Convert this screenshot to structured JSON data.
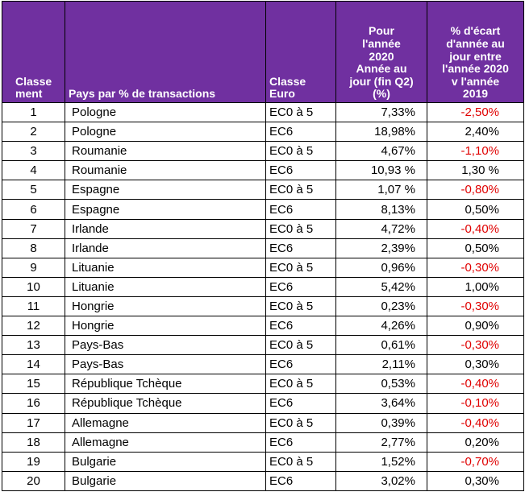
{
  "headers": {
    "rank": [
      "Classe",
      "ment"
    ],
    "country": "Pays par % de transactions",
    "class": [
      "Classe",
      "Euro"
    ],
    "pct": [
      "Pour",
      "l'année",
      "2020",
      "Année au",
      "jour (fin Q2)",
      "(%)"
    ],
    "diff": [
      "% d'écart",
      "d'année au",
      "jour entre",
      "l'année 2020",
      "v l'année",
      "2019"
    ]
  },
  "colors": {
    "header_bg": "#7030a0",
    "header_text": "#ffffff",
    "negative": "#e00000"
  },
  "rows": [
    {
      "rank": "1",
      "country": "Pologne",
      "class": "EC0 à 5",
      "pct": "7,33%",
      "diff": "-2,50%",
      "neg": true
    },
    {
      "rank": "2",
      "country": "Pologne",
      "class": "EC6",
      "pct": "18,98%",
      "diff": "2,40%",
      "neg": false
    },
    {
      "rank": "3",
      "country": "Roumanie",
      "class": "EC0 à 5",
      "pct": "4,67%",
      "diff": "-1,10%",
      "neg": true
    },
    {
      "rank": "4",
      "country": "Roumanie",
      "class": "EC6",
      "pct": "10,93 %",
      "diff": "1,30 %",
      "neg": false
    },
    {
      "rank": "5",
      "country": "Espagne",
      "class": "EC0 à 5",
      "pct": "1,07 %",
      "diff": "-0,80%",
      "neg": true
    },
    {
      "rank": "6",
      "country": "Espagne",
      "class": "EC6",
      "pct": "8,13%",
      "diff": "0,50%",
      "neg": false
    },
    {
      "rank": "7",
      "country": "Irlande",
      "class": "EC0 à 5",
      "pct": "4,72%",
      "diff": "-0,40%",
      "neg": true
    },
    {
      "rank": "8",
      "country": "Irlande",
      "class": "EC6",
      "pct": "2,39%",
      "diff": "0,50%",
      "neg": false
    },
    {
      "rank": "9",
      "country": "Lituanie",
      "class": "EC0 à 5",
      "pct": "0,96%",
      "diff": "-0,30%",
      "neg": true
    },
    {
      "rank": "10",
      "country": "Lituanie",
      "class": "EC6",
      "pct": "5,42%",
      "diff": "1,00%",
      "neg": false
    },
    {
      "rank": "11",
      "country": "Hongrie",
      "class": "EC0 à 5",
      "pct": "0,23%",
      "diff": "-0,30%",
      "neg": true
    },
    {
      "rank": "12",
      "country": "Hongrie",
      "class": "EC6",
      "pct": "4,26%",
      "diff": "0,90%",
      "neg": false
    },
    {
      "rank": "13",
      "country": "Pays-Bas",
      "class": "EC0 à 5",
      "pct": "0,61%",
      "diff": "-0,30%",
      "neg": true
    },
    {
      "rank": "14",
      "country": "Pays-Bas",
      "class": "EC6",
      "pct": "2,11%",
      "diff": "0,30%",
      "neg": false
    },
    {
      "rank": "15",
      "country": "République Tchèque",
      "class": "EC0 à 5",
      "pct": "0,53%",
      "diff": "-0,40%",
      "neg": true
    },
    {
      "rank": "16",
      "country": "République Tchèque",
      "class": "EC6",
      "pct": "3,64%",
      "diff": "-0,10%",
      "neg": true
    },
    {
      "rank": "17",
      "country": "Allemagne",
      "class": "EC0 à 5",
      "pct": "0,39%",
      "diff": "-0,40%",
      "neg": true
    },
    {
      "rank": "18",
      "country": "Allemagne",
      "class": "EC6",
      "pct": "2,77%",
      "diff": "0,20%",
      "neg": false
    },
    {
      "rank": "19",
      "country": "Bulgarie",
      "class": "EC0 à 5",
      "pct": "1,52%",
      "diff": "-0,70%",
      "neg": true
    },
    {
      "rank": "20",
      "country": "Bulgarie",
      "class": "EC6",
      "pct": "3,02%",
      "diff": "0,30%",
      "neg": false
    }
  ]
}
